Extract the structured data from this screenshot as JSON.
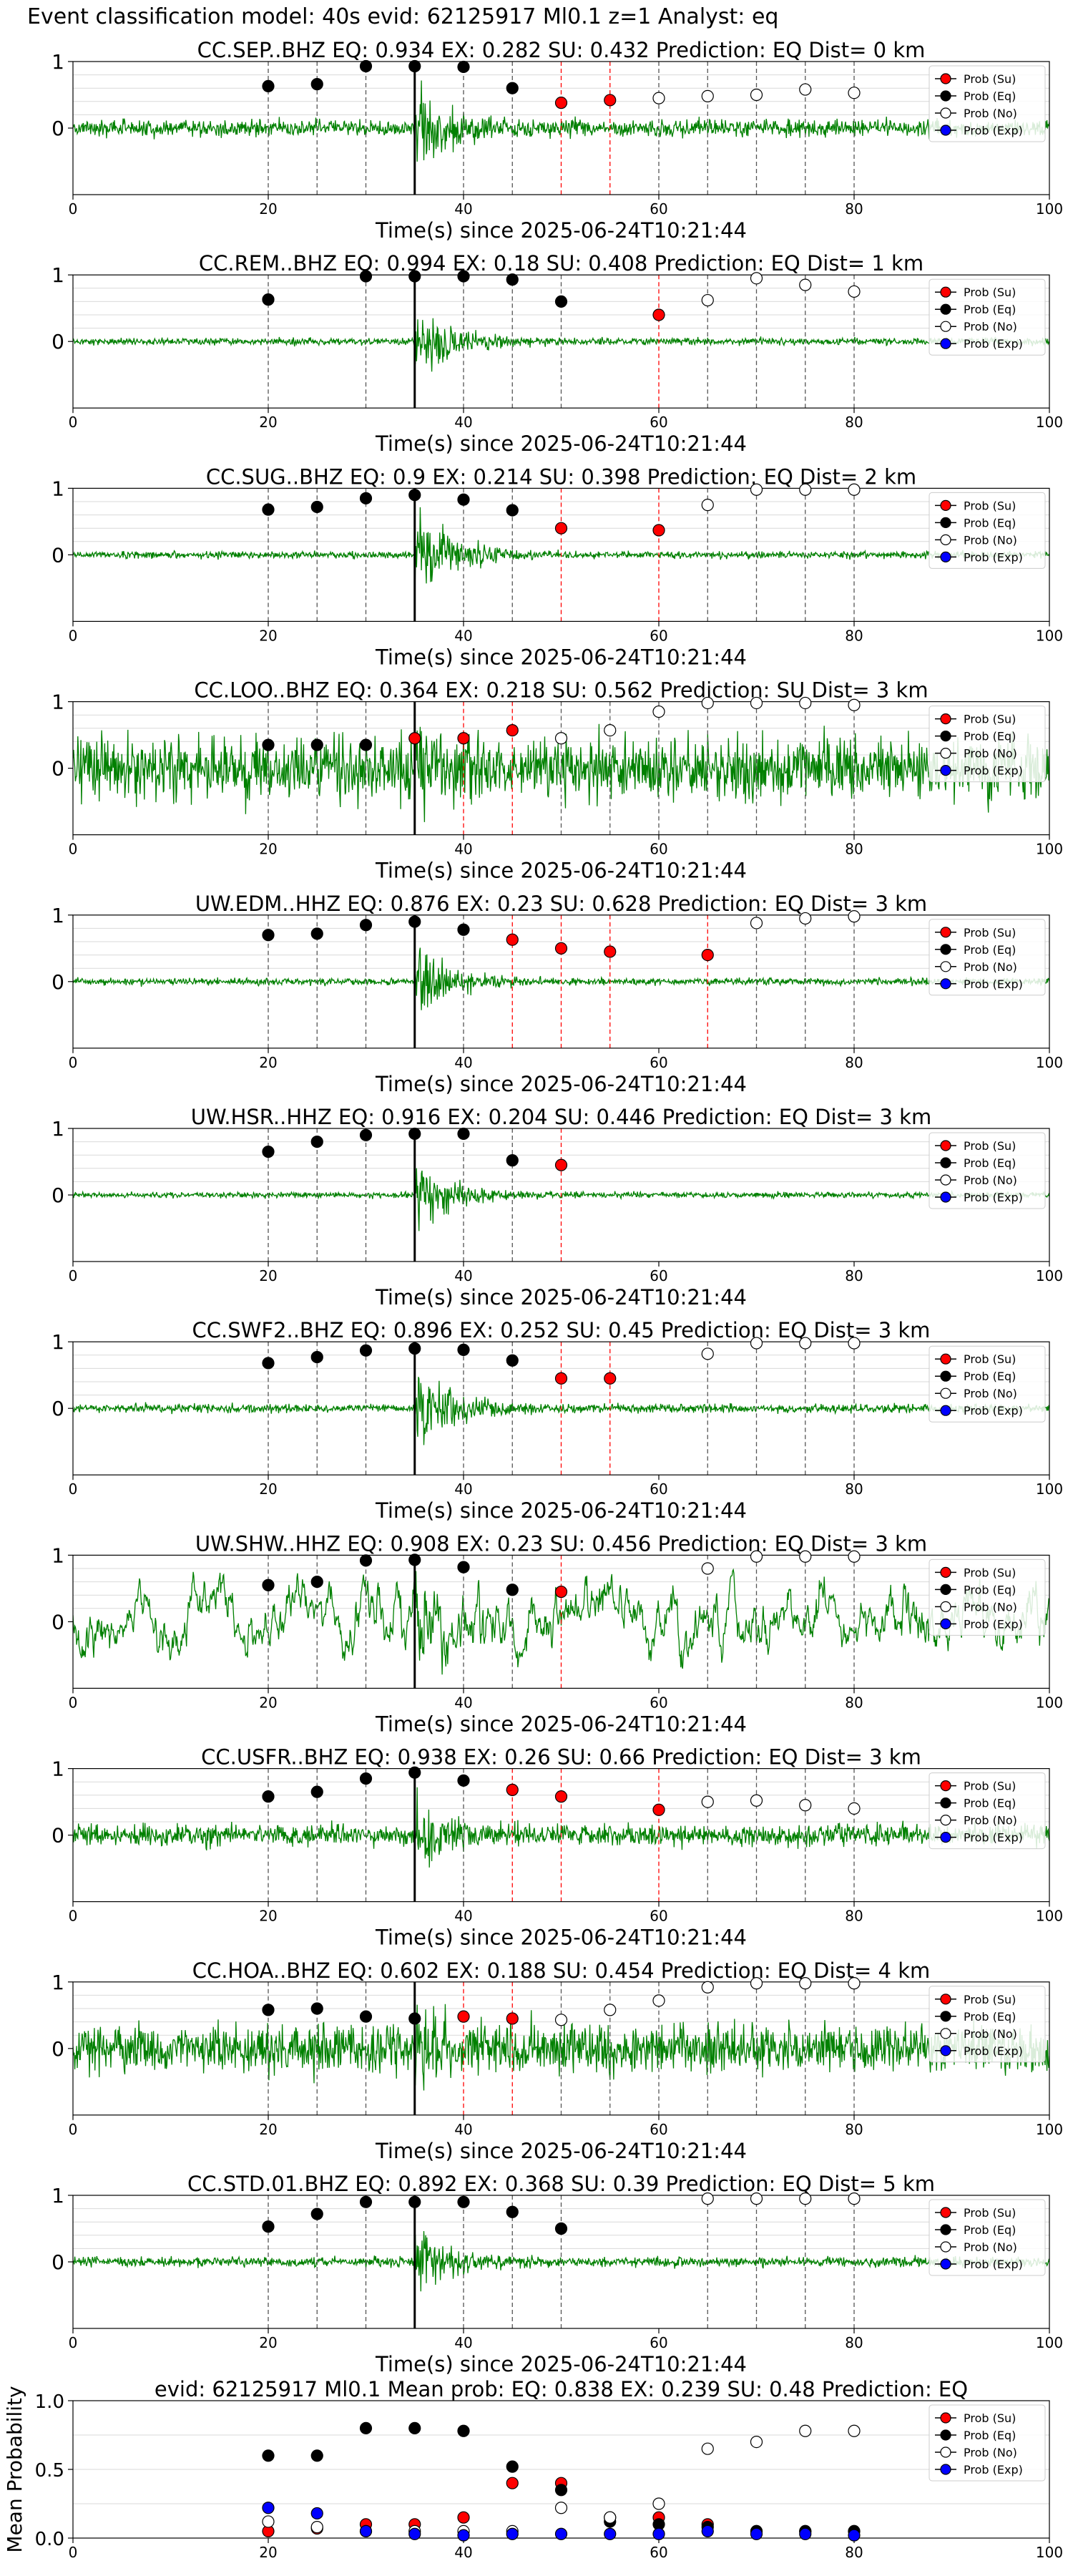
{
  "figure_title": "Event classification model: 40s evid: 62125917 Ml0.1 z=1 Analyst: eq",
  "colors": {
    "trace": "#008000",
    "su": "#ff0000",
    "eq": "#000000",
    "no": "#ffffff",
    "exp": "#0000ff",
    "grid": "#d9d9d9",
    "pick_line": "#000000",
    "window_eq": "#555555",
    "window_su": "#ff0000"
  },
  "legend": [
    "Prob (Su)",
    "Prob (Eq)",
    "Prob (No)",
    "Prob (Exp)"
  ],
  "chart_data": [
    {
      "type": "scatter",
      "title": "CC.SEP..BHZ   EQ: 0.934  EX: 0.282  SU: 0.432   Prediction: EQ    Dist= 0 km",
      "xlabel": "Time(s) since 2025-06-24T10:21:44",
      "ylabel": "",
      "xlim": [
        0,
        100
      ],
      "ylim": [
        -1,
        1
      ],
      "xticks": [
        0,
        20,
        40,
        60,
        80,
        100
      ],
      "yticks": [
        0,
        1
      ],
      "grid": true,
      "legend_position": "top-right",
      "pick_time": 35,
      "noise_level": 0.12,
      "burst_amp": 1.3,
      "lowfreq": false,
      "series": [
        {
          "name": "Prob (Eq)",
          "color": "eq",
          "x": [
            20,
            25,
            30,
            35,
            40,
            45
          ],
          "y": [
            0.63,
            0.66,
            0.93,
            0.93,
            0.92,
            0.6
          ]
        },
        {
          "name": "Prob (Su)",
          "color": "su",
          "x": [
            50,
            55
          ],
          "y": [
            0.38,
            0.42
          ]
        },
        {
          "name": "Prob (No)",
          "color": "no",
          "x": [
            60,
            65,
            70,
            75,
            80
          ],
          "y": [
            0.45,
            0.48,
            0.5,
            0.58,
            0.53
          ]
        }
      ]
    },
    {
      "type": "scatter",
      "title": "CC.REM..BHZ   EQ: 0.994  EX: 0.18  SU: 0.408   Prediction: EQ    Dist= 1 km",
      "xlabel": "Time(s) since 2025-06-24T10:21:44",
      "ylabel": "",
      "xlim": [
        0,
        100
      ],
      "ylim": [
        -1,
        1
      ],
      "xticks": [
        0,
        20,
        40,
        60,
        80,
        100
      ],
      "yticks": [
        0,
        1
      ],
      "grid": true,
      "legend_position": "top-right",
      "pick_time": 35,
      "noise_level": 0.05,
      "burst_amp": 1.0,
      "lowfreq": false,
      "series": [
        {
          "name": "Prob (Eq)",
          "color": "eq",
          "x": [
            20,
            30,
            35,
            40,
            45,
            50
          ],
          "y": [
            0.63,
            0.98,
            0.98,
            0.98,
            0.93,
            0.6
          ]
        },
        {
          "name": "Prob (Su)",
          "color": "su",
          "x": [
            60
          ],
          "y": [
            0.4
          ]
        },
        {
          "name": "Prob (No)",
          "color": "no",
          "x": [
            65,
            70,
            75,
            80
          ],
          "y": [
            0.62,
            0.95,
            0.85,
            0.75
          ]
        }
      ]
    },
    {
      "type": "scatter",
      "title": "CC.SUG..BHZ   EQ: 0.9   EX: 0.214  SU: 0.398   Prediction: EQ    Dist= 2 km",
      "xlabel": "Time(s) since 2025-06-24T10:21:44",
      "ylabel": "",
      "xlim": [
        0,
        100
      ],
      "ylim": [
        -1,
        1
      ],
      "xticks": [
        0,
        20,
        40,
        60,
        80,
        100
      ],
      "yticks": [
        0,
        1
      ],
      "grid": true,
      "legend_position": "top-right",
      "pick_time": 35,
      "noise_level": 0.05,
      "burst_amp": 1.3,
      "lowfreq": false,
      "series": [
        {
          "name": "Prob (Eq)",
          "color": "eq",
          "x": [
            20,
            25,
            30,
            35,
            40,
            45
          ],
          "y": [
            0.68,
            0.72,
            0.85,
            0.9,
            0.83,
            0.67
          ]
        },
        {
          "name": "Prob (Su)",
          "color": "su",
          "x": [
            50,
            60
          ],
          "y": [
            0.4,
            0.37
          ]
        },
        {
          "name": "Prob (No)",
          "color": "no",
          "x": [
            65,
            70,
            75,
            80
          ],
          "y": [
            0.75,
            0.98,
            0.98,
            0.98
          ]
        }
      ]
    },
    {
      "type": "scatter",
      "title": "CC.LOO..BHZ   EQ: 0.364  EX: 0.218  SU: 0.562   Prediction: SU    Dist= 3 km",
      "xlabel": "Time(s) since 2025-06-24T10:21:44",
      "ylabel": "",
      "xlim": [
        0,
        100
      ],
      "ylim": [
        -1,
        1
      ],
      "xticks": [
        0,
        20,
        40,
        60,
        80,
        100
      ],
      "yticks": [
        0,
        1
      ],
      "grid": true,
      "legend_position": "top-right",
      "pick_time": 35,
      "noise_level": 0.45,
      "burst_amp": 1.3,
      "lowfreq": false,
      "series": [
        {
          "name": "Prob (Eq)",
          "color": "eq",
          "x": [
            20,
            25,
            30
          ],
          "y": [
            0.35,
            0.35,
            0.35
          ]
        },
        {
          "name": "Prob (Su)",
          "color": "su",
          "x": [
            35,
            40,
            45
          ],
          "y": [
            0.45,
            0.45,
            0.57
          ]
        },
        {
          "name": "Prob (No)",
          "color": "no",
          "x": [
            50,
            55,
            60,
            65,
            70,
            75,
            80
          ],
          "y": [
            0.45,
            0.57,
            0.85,
            0.98,
            0.98,
            0.98,
            0.95
          ]
        }
      ]
    },
    {
      "type": "scatter",
      "title": "UW.EDM..HHZ   EQ: 0.876  EX: 0.23  SU: 0.628   Prediction: EQ    Dist= 3 km",
      "xlabel": "Time(s) since 2025-06-24T10:21:44",
      "ylabel": "",
      "xlim": [
        0,
        100
      ],
      "ylim": [
        -1,
        1
      ],
      "xticks": [
        0,
        20,
        40,
        60,
        80,
        100
      ],
      "yticks": [
        0,
        1
      ],
      "grid": true,
      "legend_position": "top-right",
      "pick_time": 35,
      "noise_level": 0.05,
      "burst_amp": 1.0,
      "lowfreq": false,
      "series": [
        {
          "name": "Prob (Eq)",
          "color": "eq",
          "x": [
            20,
            25,
            30,
            35,
            40
          ],
          "y": [
            0.7,
            0.72,
            0.85,
            0.9,
            0.78
          ]
        },
        {
          "name": "Prob (Su)",
          "color": "su",
          "x": [
            45,
            50,
            55,
            65
          ],
          "y": [
            0.63,
            0.5,
            0.45,
            0.4
          ]
        },
        {
          "name": "Prob (No)",
          "color": "no",
          "x": [
            70,
            75,
            80
          ],
          "y": [
            0.88,
            0.95,
            0.98
          ]
        }
      ]
    },
    {
      "type": "scatter",
      "title": "UW.HSR..HHZ   EQ: 0.916  EX: 0.204  SU: 0.446   Prediction: EQ    Dist= 3 km",
      "xlabel": "Time(s) since 2025-06-24T10:21:44",
      "ylabel": "",
      "xlim": [
        0,
        100
      ],
      "ylim": [
        -1,
        1
      ],
      "xticks": [
        0,
        20,
        40,
        60,
        80,
        100
      ],
      "yticks": [
        0,
        1
      ],
      "grid": true,
      "legend_position": "top-right",
      "pick_time": 35,
      "noise_level": 0.04,
      "burst_amp": 1.0,
      "lowfreq": false,
      "series": [
        {
          "name": "Prob (Eq)",
          "color": "eq",
          "x": [
            20,
            25,
            30,
            35,
            40,
            45
          ],
          "y": [
            0.65,
            0.8,
            0.9,
            0.92,
            0.92,
            0.52
          ]
        },
        {
          "name": "Prob (Su)",
          "color": "su",
          "x": [
            50
          ],
          "y": [
            0.45
          ]
        },
        {
          "name": "Prob (No)",
          "color": "no",
          "x": [],
          "y": []
        }
      ]
    },
    {
      "type": "scatter",
      "title": "CC.SWF2..BHZ   EQ: 0.896  EX: 0.252  SU: 0.45   Prediction: EQ    Dist= 3 km",
      "xlabel": "Time(s) since 2025-06-24T10:21:44",
      "ylabel": "",
      "xlim": [
        0,
        100
      ],
      "ylim": [
        -1,
        1
      ],
      "xticks": [
        0,
        20,
        40,
        60,
        80,
        100
      ],
      "yticks": [
        0,
        1
      ],
      "grid": true,
      "legend_position": "top-right",
      "pick_time": 35,
      "noise_level": 0.06,
      "burst_amp": 1.2,
      "lowfreq": false,
      "series": [
        {
          "name": "Prob (Eq)",
          "color": "eq",
          "x": [
            20,
            25,
            30,
            35,
            40,
            45
          ],
          "y": [
            0.68,
            0.77,
            0.87,
            0.9,
            0.88,
            0.72
          ]
        },
        {
          "name": "Prob (Su)",
          "color": "su",
          "x": [
            50,
            55
          ],
          "y": [
            0.45,
            0.45
          ]
        },
        {
          "name": "Prob (No)",
          "color": "no",
          "x": [
            65,
            70,
            75,
            80
          ],
          "y": [
            0.82,
            0.98,
            0.98,
            0.98
          ]
        }
      ]
    },
    {
      "type": "scatter",
      "title": "UW.SHW..HHZ   EQ: 0.908  EX: 0.23  SU: 0.456   Prediction: EQ    Dist= 3 km",
      "xlabel": "Time(s) since 2025-06-24T10:21:44",
      "ylabel": "",
      "xlim": [
        0,
        100
      ],
      "ylim": [
        -1,
        1
      ],
      "xticks": [
        0,
        20,
        40,
        60,
        80,
        100
      ],
      "yticks": [
        0,
        1
      ],
      "grid": true,
      "legend_position": "top-right",
      "pick_time": 35,
      "noise_level": 0.45,
      "burst_amp": 0.9,
      "lowfreq": true,
      "series": [
        {
          "name": "Prob (Eq)",
          "color": "eq",
          "x": [
            20,
            25,
            30,
            35,
            40,
            45
          ],
          "y": [
            0.55,
            0.6,
            0.92,
            0.93,
            0.82,
            0.48
          ]
        },
        {
          "name": "Prob (Su)",
          "color": "su",
          "x": [
            50
          ],
          "y": [
            0.45
          ]
        },
        {
          "name": "Prob (No)",
          "color": "no",
          "x": [
            65,
            70,
            75,
            80
          ],
          "y": [
            0.8,
            0.98,
            0.98,
            0.98
          ]
        }
      ]
    },
    {
      "type": "scatter",
      "title": "CC.USFR..BHZ   EQ: 0.938  EX: 0.26  SU: 0.66   Prediction: EQ    Dist= 3 km",
      "xlabel": "Time(s) since 2025-06-24T10:21:44",
      "ylabel": "",
      "xlim": [
        0,
        100
      ],
      "ylim": [
        -1,
        1
      ],
      "xticks": [
        0,
        20,
        40,
        60,
        80,
        100
      ],
      "yticks": [
        0,
        1
      ],
      "grid": true,
      "legend_position": "top-right",
      "pick_time": 35,
      "noise_level": 0.15,
      "burst_amp": 1.1,
      "lowfreq": false,
      "series": [
        {
          "name": "Prob (Eq)",
          "color": "eq",
          "x": [
            20,
            25,
            30,
            35,
            40
          ],
          "y": [
            0.58,
            0.65,
            0.85,
            0.94,
            0.82
          ]
        },
        {
          "name": "Prob (Su)",
          "color": "su",
          "x": [
            45,
            50,
            60
          ],
          "y": [
            0.68,
            0.58,
            0.38
          ]
        },
        {
          "name": "Prob (No)",
          "color": "no",
          "x": [
            65,
            70,
            75,
            80
          ],
          "y": [
            0.5,
            0.52,
            0.45,
            0.4
          ]
        }
      ]
    },
    {
      "type": "scatter",
      "title": "CC.HOA..BHZ   EQ: 0.602  EX: 0.188  SU: 0.454   Prediction: EQ    Dist= 4 km",
      "xlabel": "Time(s) since 2025-06-24T10:21:44",
      "ylabel": "",
      "xlim": [
        0,
        100
      ],
      "ylim": [
        -1,
        1
      ],
      "xticks": [
        0,
        20,
        40,
        60,
        80,
        100
      ],
      "yticks": [
        0,
        1
      ],
      "grid": true,
      "legend_position": "top-right",
      "pick_time": 35,
      "noise_level": 0.35,
      "burst_amp": 1.2,
      "lowfreq": false,
      "series": [
        {
          "name": "Prob (Eq)",
          "color": "eq",
          "x": [
            20,
            25,
            30,
            35
          ],
          "y": [
            0.58,
            0.6,
            0.48,
            0.45
          ]
        },
        {
          "name": "Prob (Su)",
          "color": "su",
          "x": [
            40,
            45
          ],
          "y": [
            0.48,
            0.45
          ]
        },
        {
          "name": "Prob (No)",
          "color": "no",
          "x": [
            50,
            55,
            60,
            65,
            70,
            75,
            80
          ],
          "y": [
            0.43,
            0.58,
            0.72,
            0.92,
            0.98,
            0.98,
            0.98
          ]
        }
      ]
    },
    {
      "type": "scatter",
      "title": "CC.STD.01.BHZ   EQ: 0.892  EX: 0.368  SU: 0.39   Prediction: EQ    Dist= 5 km",
      "xlabel": "Time(s) since 2025-06-24T10:21:44",
      "ylabel": "",
      "xlim": [
        0,
        100
      ],
      "ylim": [
        -1,
        1
      ],
      "xticks": [
        0,
        20,
        40,
        60,
        80,
        100
      ],
      "yticks": [
        0,
        1
      ],
      "grid": true,
      "legend_position": "top-right",
      "pick_time": 35,
      "noise_level": 0.07,
      "burst_amp": 1.0,
      "lowfreq": false,
      "series": [
        {
          "name": "Prob (Eq)",
          "color": "eq",
          "x": [
            20,
            25,
            30,
            35,
            40,
            45,
            50
          ],
          "y": [
            0.53,
            0.72,
            0.9,
            0.9,
            0.9,
            0.75,
            0.5
          ]
        },
        {
          "name": "Prob (Su)",
          "color": "su",
          "x": [],
          "y": []
        },
        {
          "name": "Prob (No)",
          "color": "no",
          "x": [
            65,
            70,
            75,
            80
          ],
          "y": [
            0.95,
            0.95,
            0.95,
            0.95
          ]
        }
      ]
    },
    {
      "type": "scatter",
      "title": "evid: 62125917  Ml0.1   Mean prob:   EQ: 0.838  EX: 0.239  SU: 0.48   Prediction: EQ",
      "xlabel": "",
      "ylabel": "Mean Probability",
      "xlim": [
        0,
        100
      ],
      "ylim": [
        0,
        1
      ],
      "xticks": [
        0,
        20,
        40,
        60,
        80,
        100
      ],
      "yticks": [
        0.0,
        0.5,
        1.0
      ],
      "ytick_labels": [
        "0.0",
        "0.5",
        "1.0"
      ],
      "grid": true,
      "legend_position": "top-right",
      "series": [
        {
          "name": "Prob (Su)",
          "color": "su",
          "x": [
            20,
            25,
            30,
            35,
            40,
            45,
            50,
            55,
            60,
            65,
            70,
            75,
            80
          ],
          "y": [
            0.05,
            0.07,
            0.1,
            0.1,
            0.15,
            0.4,
            0.4,
            0.15,
            0.15,
            0.1,
            0.05,
            0.05,
            0.05
          ]
        },
        {
          "name": "Prob (Eq)",
          "color": "eq",
          "x": [
            20,
            25,
            30,
            35,
            40,
            45,
            50,
            55,
            60,
            65,
            70,
            75,
            80
          ],
          "y": [
            0.6,
            0.6,
            0.8,
            0.8,
            0.78,
            0.52,
            0.35,
            0.12,
            0.1,
            0.08,
            0.05,
            0.05,
            0.05
          ]
        },
        {
          "name": "Prob (No)",
          "color": "no",
          "x": [
            20,
            25,
            30,
            35,
            40,
            45,
            50,
            55,
            60,
            65,
            70,
            75,
            80
          ],
          "y": [
            0.12,
            0.08,
            0.05,
            0.05,
            0.05,
            0.05,
            0.22,
            0.15,
            0.25,
            0.65,
            0.7,
            0.78,
            0.78
          ]
        },
        {
          "name": "Prob (Exp)",
          "color": "exp",
          "x": [
            20,
            25,
            30,
            35,
            40,
            45,
            50,
            55,
            60,
            65,
            70,
            75,
            80
          ],
          "y": [
            0.22,
            0.18,
            0.05,
            0.03,
            0.02,
            0.03,
            0.03,
            0.03,
            0.03,
            0.05,
            0.03,
            0.03,
            0.02
          ]
        }
      ]
    }
  ]
}
